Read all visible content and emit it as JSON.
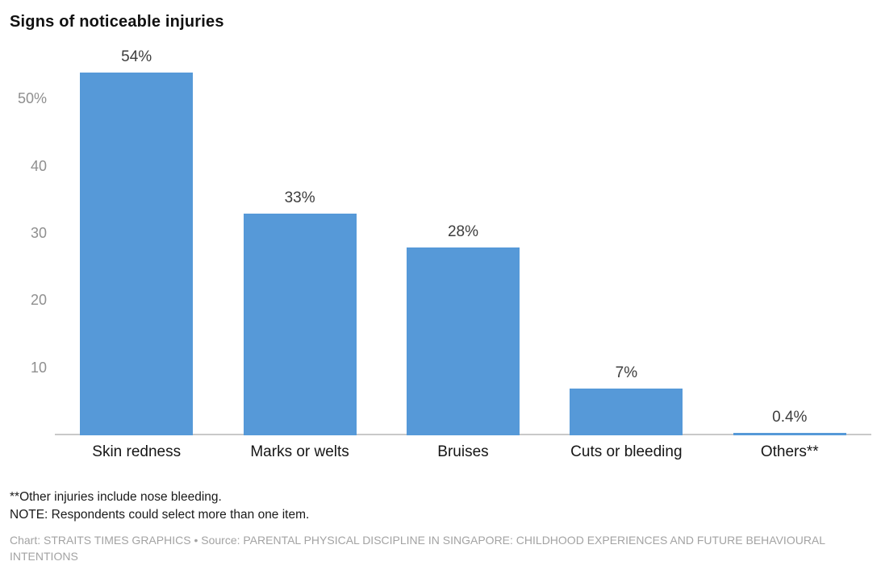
{
  "title": "Signs of noticeable injuries",
  "chart_data": {
    "type": "bar",
    "categories": [
      "Skin redness",
      "Marks or welts",
      "Bruises",
      "Cuts or bleeding",
      "Others**"
    ],
    "values": [
      54,
      33,
      28,
      7,
      0.4
    ],
    "value_labels": [
      "54%",
      "33%",
      "28%",
      "7%",
      "0.4%"
    ],
    "title": "Signs of noticeable injuries",
    "xlabel": "",
    "ylabel": "",
    "ylim": [
      0,
      54
    ],
    "yticks": [
      {
        "value": 10,
        "label": "10"
      },
      {
        "value": 20,
        "label": "20"
      },
      {
        "value": 30,
        "label": "30"
      },
      {
        "value": 40,
        "label": "40"
      },
      {
        "value": 50,
        "label": "50%"
      }
    ],
    "grid": false,
    "legend": "none",
    "bar_color": "#5699d8"
  },
  "colors": {
    "bar": "#5699d8",
    "axis_line": "#c9c9c9",
    "tick_text": "#8f8f8f",
    "value_text": "#3d3d3d",
    "category_text": "#161616",
    "source_text": "#a3a3a3"
  },
  "notes": {
    "footnote": "**Other injuries include nose bleeding.",
    "note": "NOTE: Respondents could select more than one item."
  },
  "source": "Chart: STRAITS TIMES GRAPHICS • Source: PARENTAL PHYSICAL DISCIPLINE IN SINGAPORE: CHILDHOOD EXPERIENCES AND FUTURE BEHAVIOURAL INTENTIONS"
}
